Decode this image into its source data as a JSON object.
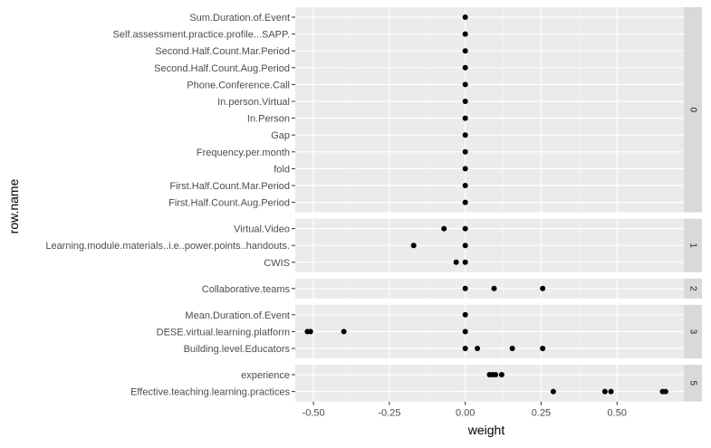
{
  "chart_data": {
    "type": "scatter",
    "title": "",
    "xlabel": "weight",
    "ylabel": "row.name",
    "xlim": [
      -0.56,
      0.72
    ],
    "x_ticks": [
      -0.5,
      -0.25,
      0.0,
      0.25,
      0.5
    ],
    "x_tick_labels": [
      "-0.50",
      "-0.25",
      "0.00",
      "0.25",
      "0.50"
    ],
    "grid": true,
    "legend": "none",
    "panels": [
      {
        "facet": "0",
        "rows": [
          {
            "label": "Sum.Duration.of.Event",
            "x": [
              0.0
            ]
          },
          {
            "label": "Self.assessment.practice.profile...SAPP.",
            "x": [
              0.0
            ]
          },
          {
            "label": "Second.Half.Count.Mar.Period",
            "x": [
              0.0
            ]
          },
          {
            "label": "Second.Half.Count.Aug.Period",
            "x": [
              0.0
            ]
          },
          {
            "label": "Phone.Conference.Call",
            "x": [
              0.0
            ]
          },
          {
            "label": "In.person.Virtual",
            "x": [
              0.0
            ]
          },
          {
            "label": "In.Person",
            "x": [
              0.0
            ]
          },
          {
            "label": "Gap",
            "x": [
              0.0
            ]
          },
          {
            "label": "Frequency.per.month",
            "x": [
              0.0
            ]
          },
          {
            "label": "fold",
            "x": [
              0.0
            ]
          },
          {
            "label": "First.Half.Count.Mar.Period",
            "x": [
              0.0
            ]
          },
          {
            "label": "First.Half.Count.Aug.Period",
            "x": [
              0.0
            ]
          }
        ]
      },
      {
        "facet": "1",
        "rows": [
          {
            "label": "Virtual.Video",
            "x": [
              -0.07,
              0.0
            ]
          },
          {
            "label": "Learning.module.materials..i.e..power.points..handouts.",
            "x": [
              -0.17,
              0.0
            ]
          },
          {
            "label": "CWIS",
            "x": [
              -0.03,
              0.0
            ]
          }
        ]
      },
      {
        "facet": "2",
        "rows": [
          {
            "label": "Collaborative.teams",
            "x": [
              0.0,
              0.095,
              0.255
            ]
          }
        ]
      },
      {
        "facet": "3",
        "rows": [
          {
            "label": "Mean.Duration.of.Event",
            "x": [
              0.0
            ]
          },
          {
            "label": "DESE.virtual.learning.platform",
            "x": [
              -0.52,
              -0.51,
              -0.4,
              0.0
            ]
          },
          {
            "label": "Building.level.Educators",
            "x": [
              0.0,
              0.04,
              0.155,
              0.255
            ]
          }
        ]
      },
      {
        "facet": "5",
        "rows": [
          {
            "label": "experience",
            "x": [
              0.08,
              0.09,
              0.1,
              0.12
            ]
          },
          {
            "label": "Effective.teaching.learning.practices",
            "x": [
              0.29,
              0.46,
              0.48,
              0.65,
              0.66
            ]
          }
        ]
      }
    ]
  }
}
